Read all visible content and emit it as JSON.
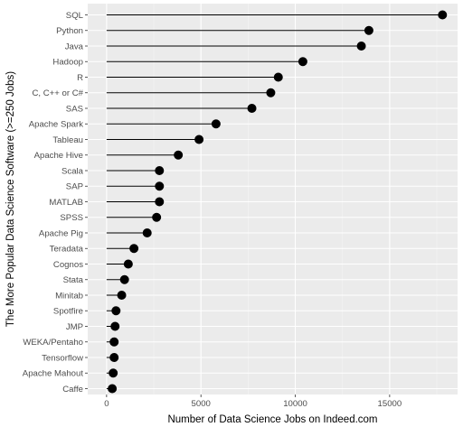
{
  "chart_data": {
    "type": "lollipop",
    "xlabel": "Number of Data Science Jobs on Indeed.com",
    "ylabel": "The More Popular Data Science Software (>=250 Jobs)",
    "xlim": [
      -1000,
      18600
    ],
    "x_ticks": [
      0,
      5000,
      10000,
      15000
    ],
    "grid": true,
    "colors": {
      "panel": "#EBEBEB",
      "grid_major": "#FFFFFF",
      "grid_minor": "#F5F5F5",
      "mark": "#000000"
    },
    "categories": [
      "SQL",
      "Python",
      "Java",
      "Hadoop",
      "R",
      "C, C++ or C#",
      "SAS",
      "Apache Spark",
      "Tableau",
      "Apache Hive",
      "Scala",
      "SAP",
      "MATLAB",
      "SPSS",
      "Apache Pig",
      "Teradata",
      "Cognos",
      "Stata",
      "Minitab",
      "Spotfire",
      "JMP",
      "WEKA/Pentaho",
      "Tensorflow",
      "Apache Mahout",
      "Caffe"
    ],
    "values": [
      17800,
      13900,
      13500,
      10400,
      9100,
      8700,
      7700,
      5800,
      4900,
      3800,
      2800,
      2800,
      2800,
      2650,
      2150,
      1450,
      1150,
      950,
      800,
      500,
      450,
      400,
      400,
      350,
      300
    ]
  }
}
